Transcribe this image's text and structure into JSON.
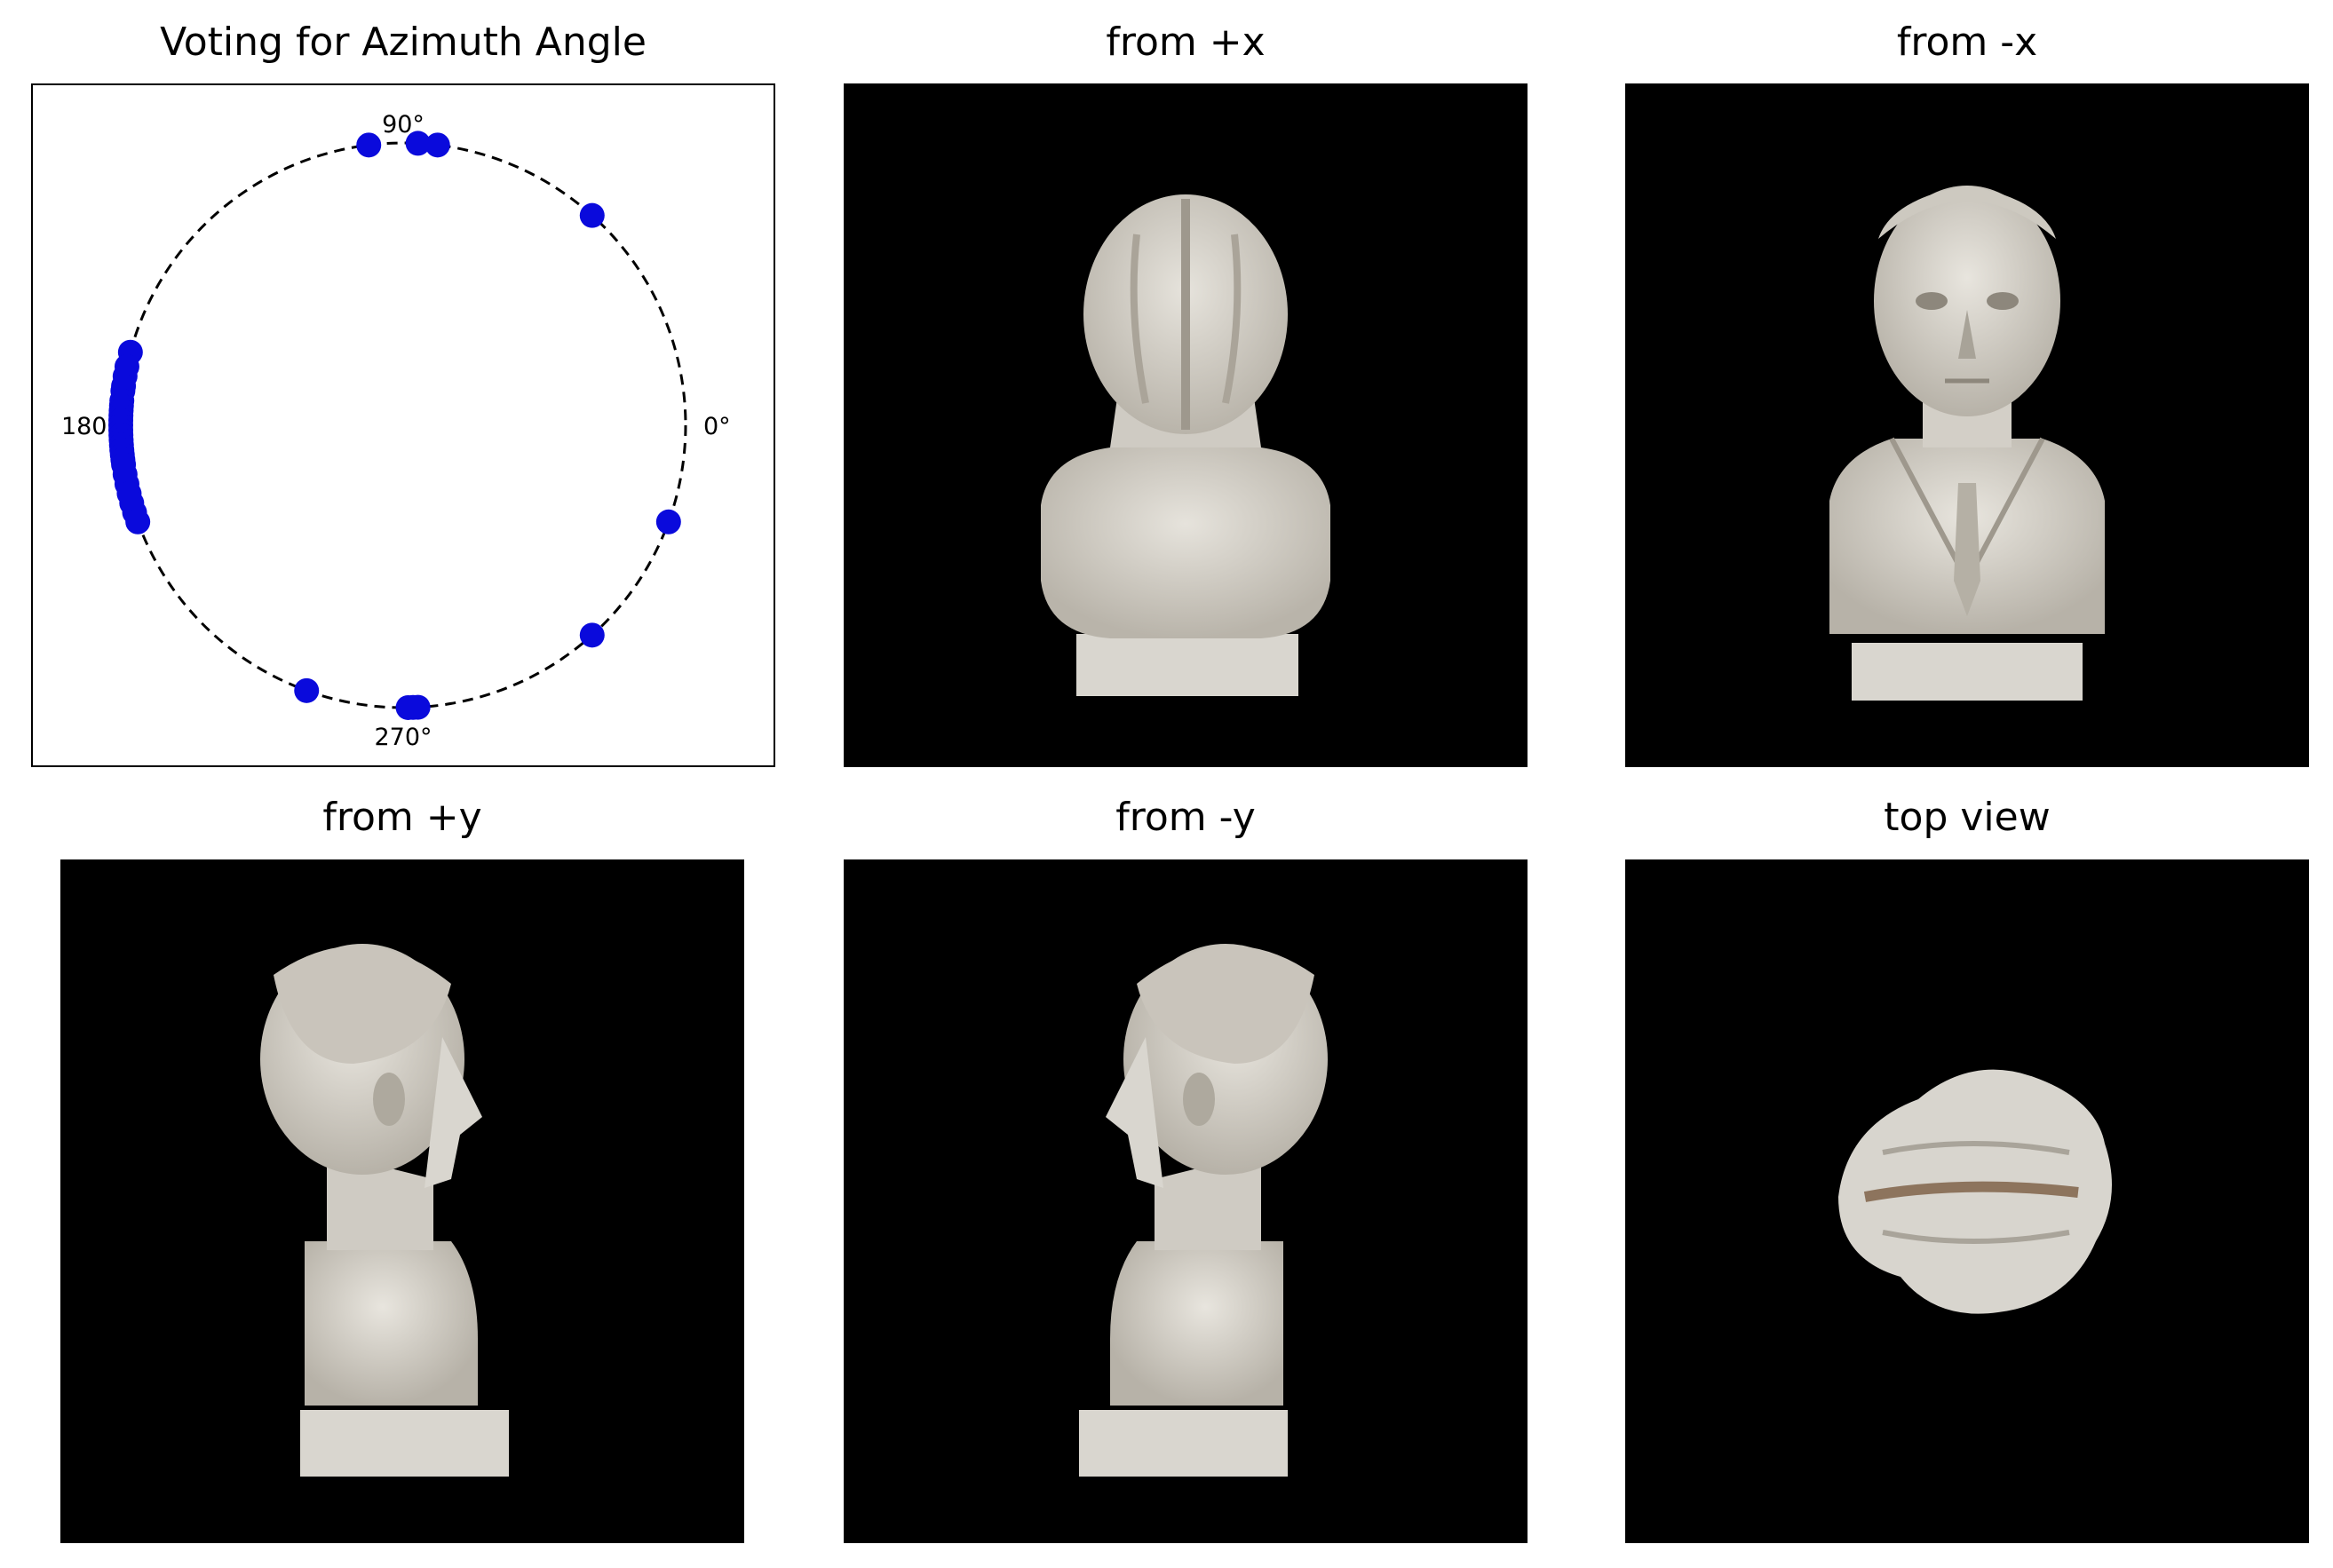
{
  "chart_data": {
    "type": "scatter",
    "coordinate_system": "polar",
    "title": "Voting for Azimuth Angle",
    "angle_ticks": [
      "0°",
      "90°",
      "180°",
      "270°"
    ],
    "radius": 1,
    "point_color": "#0a0adc",
    "azimuth_votes_deg": [
      83,
      87,
      97,
      48,
      340,
      312,
      271,
      273,
      272,
      250,
      165,
      168,
      170,
      172,
      173,
      175,
      176,
      177,
      178,
      179,
      180,
      181,
      182,
      183,
      184,
      185,
      186,
      187,
      188,
      190,
      192,
      194,
      196,
      198,
      200
    ]
  },
  "panels": [
    {
      "id": "from-plus-x",
      "title": "from +x",
      "view": "back of bust"
    },
    {
      "id": "from-minus-x",
      "title": "from -x",
      "view": "front of bust"
    },
    {
      "id": "from-plus-y",
      "title": "from +y",
      "view": "profile facing right"
    },
    {
      "id": "from-minus-y",
      "title": "from -y",
      "view": "profile facing left"
    },
    {
      "id": "top-view",
      "title": "top view",
      "view": "top of head"
    }
  ],
  "colors": {
    "panel_background": "#000000",
    "marble": "#dcd9d2",
    "marble_shadow": "#a9a49a",
    "dashed_circle": "#000000"
  }
}
